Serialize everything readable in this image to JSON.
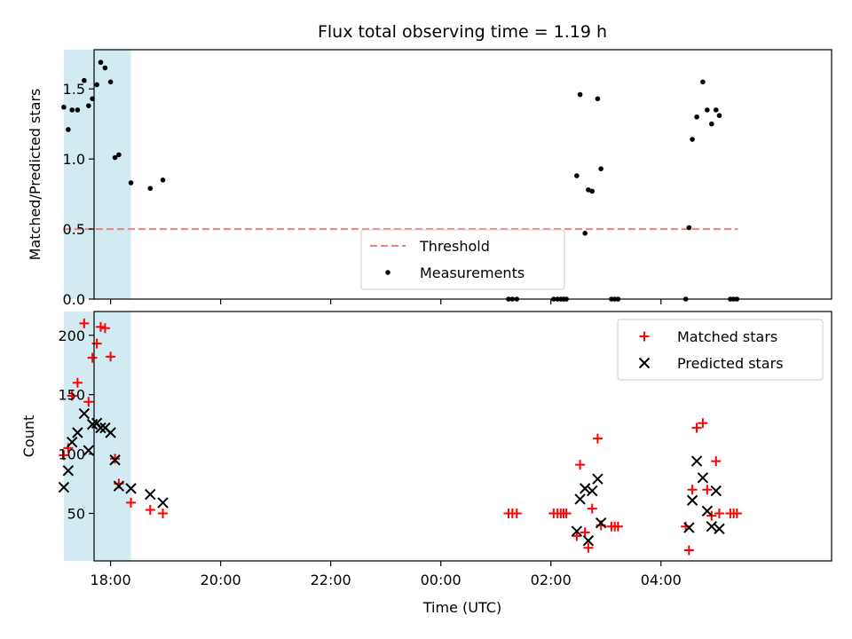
{
  "chart_data": {
    "type": "scatter",
    "title": "Flux total observing time = 1.19 h",
    "xlabel": "Time (UTC)",
    "x_unit": "hours since 00:00 UTC",
    "xlim": [
      -6.3,
      7.1
    ],
    "x_ticks": [
      {
        "value": -6,
        "label": "18:00"
      },
      {
        "value": -4,
        "label": "20:00"
      },
      {
        "value": -2,
        "label": "22:00"
      },
      {
        "value": 0,
        "label": "00:00"
      },
      {
        "value": 2,
        "label": "02:00"
      },
      {
        "value": 4,
        "label": "04:00"
      }
    ],
    "highlight_span": {
      "x0": -6.85,
      "x1": -5.63,
      "color": "#add8e6"
    },
    "panels": [
      {
        "id": "ratio",
        "ylabel": "Matched/Predicted stars",
        "ylim": [
          0,
          1.78
        ],
        "y_ticks": [
          0.0,
          0.5,
          1.0,
          1.5
        ],
        "y_tick_labels": [
          "0.0",
          "0.5",
          "1.0",
          "1.5"
        ],
        "threshold": {
          "name": "Threshold",
          "value": 0.5,
          "x0": -6.85,
          "x1": 5.4,
          "color": "#f08080"
        },
        "series": [
          {
            "name": "Measurements",
            "color": "#000000",
            "marker": "dot",
            "x": [
              -6.85,
              -6.77,
              -6.7,
              -6.6,
              -6.48,
              -6.4,
              -6.33,
              -6.25,
              -6.18,
              -6.1,
              -6.0,
              -5.92,
              -5.85,
              -5.63,
              -5.28,
              -5.05,
              1.23,
              1.3,
              1.38,
              2.05,
              2.12,
              2.18,
              2.23,
              2.28,
              2.47,
              2.53,
              2.62,
              2.68,
              2.75,
              2.85,
              2.91,
              3.1,
              3.16,
              3.22,
              4.45,
              4.51,
              4.57,
              4.65,
              4.76,
              4.84,
              4.92,
              5.0,
              5.06,
              5.26,
              5.32,
              5.38
            ],
            "y": [
              1.37,
              1.21,
              1.35,
              1.35,
              1.56,
              1.38,
              1.43,
              1.53,
              1.69,
              1.65,
              1.55,
              1.01,
              1.03,
              0.83,
              0.79,
              0.85,
              0.0,
              0.0,
              0.0,
              0.0,
              0.0,
              0.0,
              0.0,
              0.0,
              0.88,
              1.46,
              0.47,
              0.78,
              0.77,
              1.43,
              0.93,
              0.0,
              0.0,
              0.0,
              0.0,
              0.51,
              1.14,
              1.3,
              1.55,
              1.35,
              1.25,
              1.35,
              1.31,
              0.0,
              0.0,
              0.0
            ]
          }
        ],
        "legend": [
          "Threshold",
          "Measurements"
        ],
        "legend_position": "lower center"
      },
      {
        "id": "counts",
        "ylabel": "Count",
        "ylim": [
          10,
          220
        ],
        "y_ticks": [
          50,
          100,
          150,
          200
        ],
        "y_tick_labels": [
          "50",
          "100",
          "150",
          "200"
        ],
        "series": [
          {
            "name": "Matched stars",
            "color": "#ff0000",
            "marker": "plus",
            "x": [
              -6.85,
              -6.77,
              -6.7,
              -6.6,
              -6.48,
              -6.4,
              -6.33,
              -6.25,
              -6.18,
              -6.1,
              -6.0,
              -5.92,
              -5.85,
              -5.63,
              -5.28,
              -5.05,
              1.23,
              1.3,
              1.38,
              2.05,
              2.12,
              2.18,
              2.23,
              2.28,
              2.47,
              2.53,
              2.62,
              2.68,
              2.75,
              2.85,
              2.91,
              3.1,
              3.16,
              3.22,
              4.45,
              4.51,
              4.57,
              4.65,
              4.76,
              4.84,
              4.92,
              5.0,
              5.06,
              5.26,
              5.32,
              5.38
            ],
            "y": [
              99,
              105,
              149,
              160,
              210,
              144,
              181,
              193,
              207,
              206,
              182,
              96,
              75,
              59,
              53,
              50,
              50,
              50,
              50,
              50,
              50,
              50,
              50,
              50,
              31,
              91,
              34,
              21,
              54,
              113,
              40,
              39,
              39,
              39,
              39,
              19,
              70,
              122,
              126,
              70,
              48,
              94,
              50,
              50,
              50,
              50
            ]
          },
          {
            "name": "Predicted stars",
            "color": "#000000",
            "marker": "x",
            "x": [
              -6.85,
              -6.77,
              -6.7,
              -6.6,
              -6.48,
              -6.4,
              -6.33,
              -6.25,
              -6.18,
              -6.1,
              -6.0,
              -5.92,
              -5.85,
              -5.63,
              -5.28,
              -5.05,
              2.47,
              2.53,
              2.62,
              2.68,
              2.75,
              2.85,
              2.91,
              4.51,
              4.57,
              4.65,
              4.76,
              4.84,
              4.92,
              5.0,
              5.06
            ],
            "y": [
              72,
              86,
              110,
              118,
              134,
              103,
              125,
              126,
              122,
              122,
              118,
              95,
              73,
              71,
              66,
              59,
              35,
              62,
              71,
              27,
              69,
              79,
              42,
              38,
              61,
              94,
              80,
              52,
              39,
              69,
              37
            ]
          }
        ],
        "legend": [
          "Matched stars",
          "Predicted stars"
        ],
        "legend_position": "upper right"
      }
    ]
  }
}
